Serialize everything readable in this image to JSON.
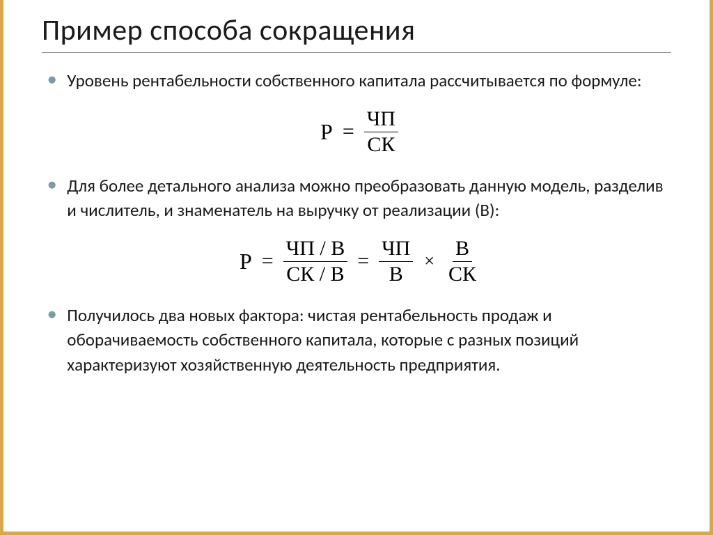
{
  "title": "Пример способа сокращения",
  "bullets": {
    "b1": "Уровень рентабельности собственного капитала рассчитывается по формуле:",
    "b2": "Для более детального анализа можно преобразовать данную модель, разделив и числитель, и знаменатель на выручку от реализации (В):",
    "b3": "Получилось два новых фактора: чистая рентабельность продаж и оборачиваемость собственного капитала, которые с разных позиций характеризуют хозяйственную деятельность предприятия."
  },
  "formula1": {
    "lhs": "Р",
    "num": "ЧП",
    "den": "СК"
  },
  "formula2": {
    "lhs": "Р",
    "f1_num": "ЧП / В",
    "f1_den": "СК / В",
    "f2_num": "ЧП",
    "f2_den": "В",
    "f3_num": "В",
    "f3_den": "СК"
  },
  "colors": {
    "border": "#d5a84f",
    "bullet": "#7d9aaa",
    "text": "#1a1a1a",
    "underline": "#888888",
    "background": "#ffffff"
  },
  "typography": {
    "title_fontsize": 42,
    "body_fontsize": 25,
    "formula_fontsize": 32,
    "font_family": "Corbel/Calibri"
  }
}
